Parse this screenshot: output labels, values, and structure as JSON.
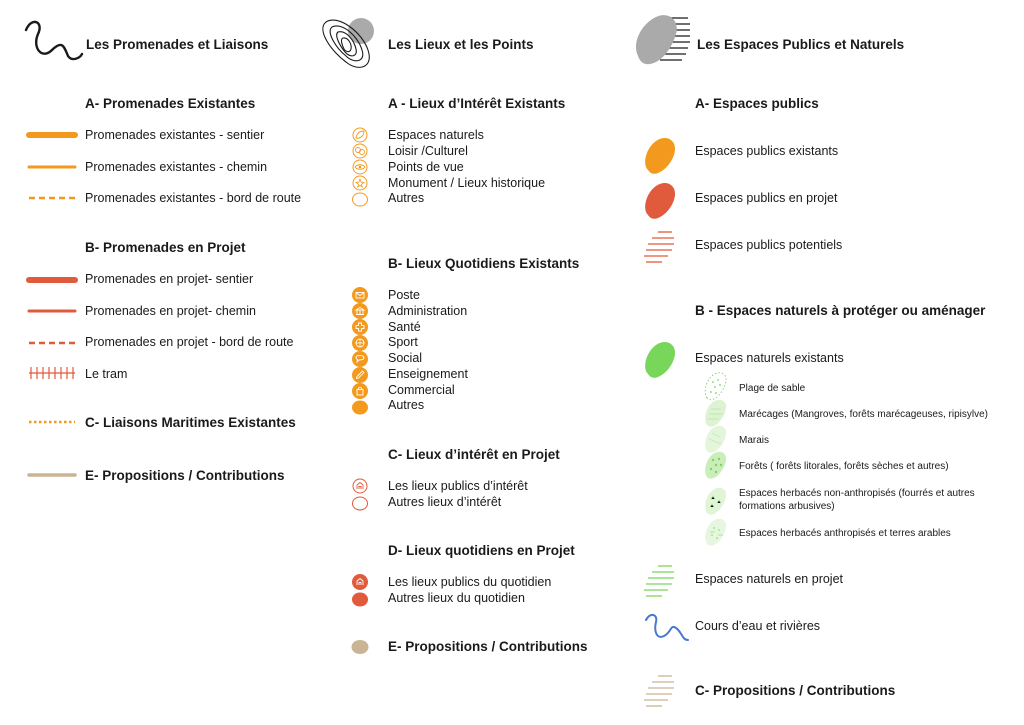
{
  "colors": {
    "orange": "#F39A1E",
    "red": "#E05A3C",
    "green": "#78D75A",
    "light_green": "#B9E5A8",
    "beige": "#C9B594",
    "grey": "#AAAAAA",
    "blue": "#4A78D0",
    "text": "#1a1a1a"
  },
  "col1": {
    "title": "Les Promenades et Liaisons",
    "title_icon": "wavy-line-icon",
    "sectionA": {
      "title": "A- Promenades Existantes",
      "items": [
        "Promenades existantes - sentier",
        "Promenades existantes - chemin",
        "Promenades existantes - bord de route"
      ]
    },
    "sectionB": {
      "title": "B- Promenades en Projet",
      "items": [
        "Promenades en projet- sentier",
        "Promenades en projet- chemin",
        "Promenades en projet - bord de route",
        "Le tram"
      ]
    },
    "sectionC": {
      "title": "C- Liaisons Maritimes Existantes"
    },
    "sectionE": {
      "title": "E- Propositions / Contributions"
    }
  },
  "col2": {
    "title": "Les Lieux et les Points",
    "title_icon": "contour-map-icon",
    "sectionA": {
      "title": "A - Lieux d’Intérêt Existants",
      "items": [
        "Espaces naturels",
        "Loisir /Culturel",
        "Points de vue",
        "Monument / Lieux historique",
        "Autres"
      ]
    },
    "sectionB": {
      "title": "B- Lieux Quotidiens Existants",
      "items": [
        "Poste",
        "Administration",
        "Santé",
        "Sport",
        "Social",
        "Enseignement",
        "Commercial",
        "Autres"
      ]
    },
    "sectionC": {
      "title": "C- Lieux d’intérêt  en Projet",
      "items": [
        "Les lieux publics d’intérêt",
        "Autres lieux d’intérêt"
      ]
    },
    "sectionD": {
      "title": "D- Lieux quotidiens en Projet",
      "items": [
        "Les lieux publics du quotidien",
        "Autres lieux du quotidien"
      ]
    },
    "sectionE": {
      "title": "E- Propositions / Contributions"
    }
  },
  "col3": {
    "title": "Les Espaces Publics et Naturels",
    "title_icon": "hatched-blob-icon",
    "sectionA": {
      "title": "A- Espaces publics",
      "items": [
        "Espaces publics existants",
        "Espaces publics en projet",
        "Espaces publics potentiels"
      ]
    },
    "sectionB": {
      "title": "B - Espaces naturels à protéger ou aménager",
      "existing": "Espaces naturels existants",
      "sub_items": [
        "Plage de sable",
        "Marécages (Mangroves, forêts marécageuses, ripisylve)",
        "Marais",
        "Forêts ( forêts litorales, forêts sèches et autres)",
        "Espaces herbacés non-anthropisés (fourrés et autres",
        "formations arbusives)",
        "Espaces herbacés anthropisés et terres arables"
      ],
      "project": "Espaces naturels en projet",
      "water": "Cours d’eau et rivières"
    },
    "sectionC": {
      "title": "C- Propositions / Contributions"
    }
  }
}
